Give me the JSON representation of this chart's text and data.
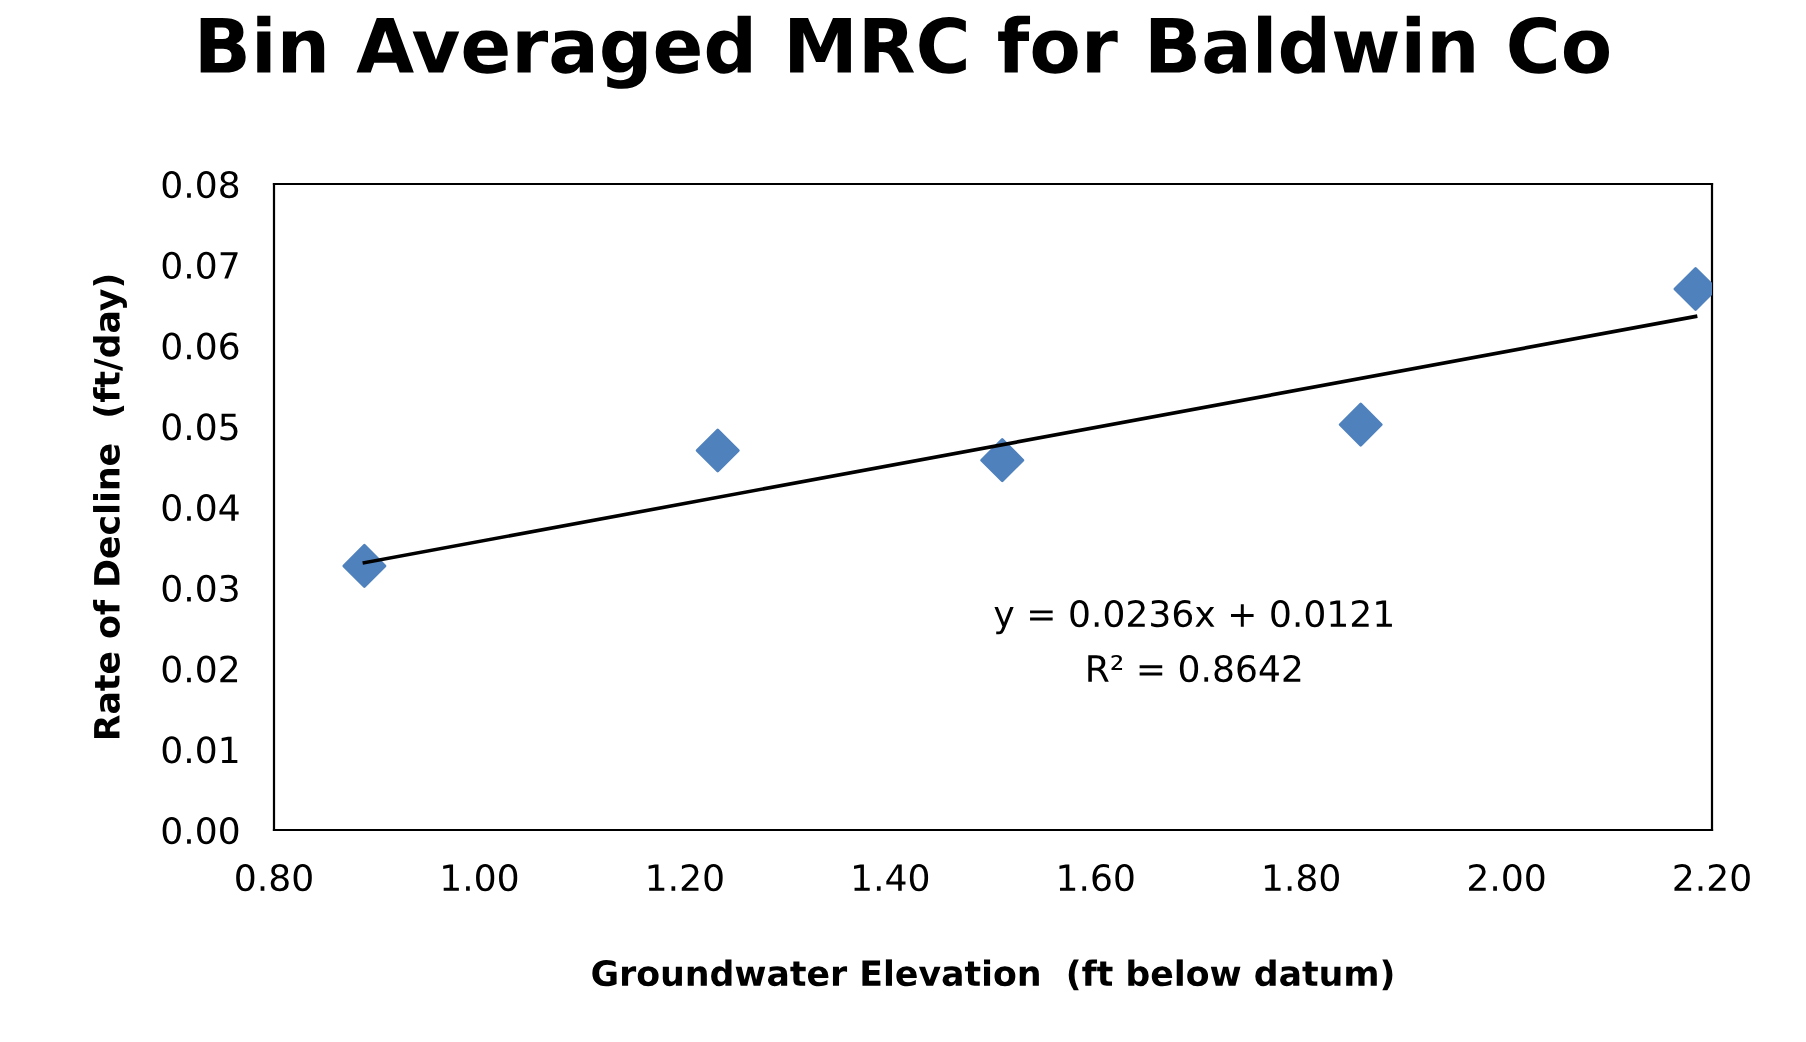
{
  "chart_data": {
    "type": "scatter",
    "title": "Bin Averaged MRC for Baldwin Co",
    "xlabel": "Groundwater Elevation  (ft below datum)",
    "ylabel": "Rate of Decline  (ft/day)",
    "series": [
      {
        "color": "#4f81bd",
        "marker": "diamond",
        "x": [
          0.888,
          1.232,
          1.509,
          1.858,
          2.184
        ],
        "values": [
          0.0327,
          0.047,
          0.0458,
          0.0502,
          0.067
        ]
      },
      {
        "type": "line",
        "color": "#000000",
        "marker": "none",
        "line_style": "solid",
        "x": [
          0.888,
          2.184
        ],
        "values": [
          0.0331,
          0.0636
        ]
      }
    ],
    "annotations": [
      "y = 0.0236x + 0.0121",
      "R² = 0.8642"
    ],
    "xlim": [
      0.8,
      2.2
    ],
    "ylim": [
      0,
      0.08
    ],
    "xticks": [
      {
        "value": 0.8,
        "label": "0.80"
      },
      {
        "value": 1.0,
        "label": "1.00"
      },
      {
        "value": 1.2,
        "label": "1.20"
      },
      {
        "value": 1.4,
        "label": "1.40"
      },
      {
        "value": 1.6,
        "label": "1.60"
      },
      {
        "value": 1.8,
        "label": "1.80"
      },
      {
        "value": 2.0,
        "label": "2.00"
      },
      {
        "value": 2.2,
        "label": "2.20"
      }
    ],
    "yticks": [
      {
        "value": 0,
        "label": "0.00"
      },
      {
        "value": 0.01,
        "label": "0.01"
      },
      {
        "value": 0.02,
        "label": "0.02"
      },
      {
        "value": 0.03,
        "label": "0.03"
      },
      {
        "value": 0.04,
        "label": "0.04"
      },
      {
        "value": 0.05,
        "label": "0.05"
      },
      {
        "value": 0.06,
        "label": "0.06"
      },
      {
        "value": 0.07,
        "label": "0.07"
      },
      {
        "value": 0.08,
        "label": "0.08"
      }
    ],
    "grid": false,
    "legend": false
  }
}
